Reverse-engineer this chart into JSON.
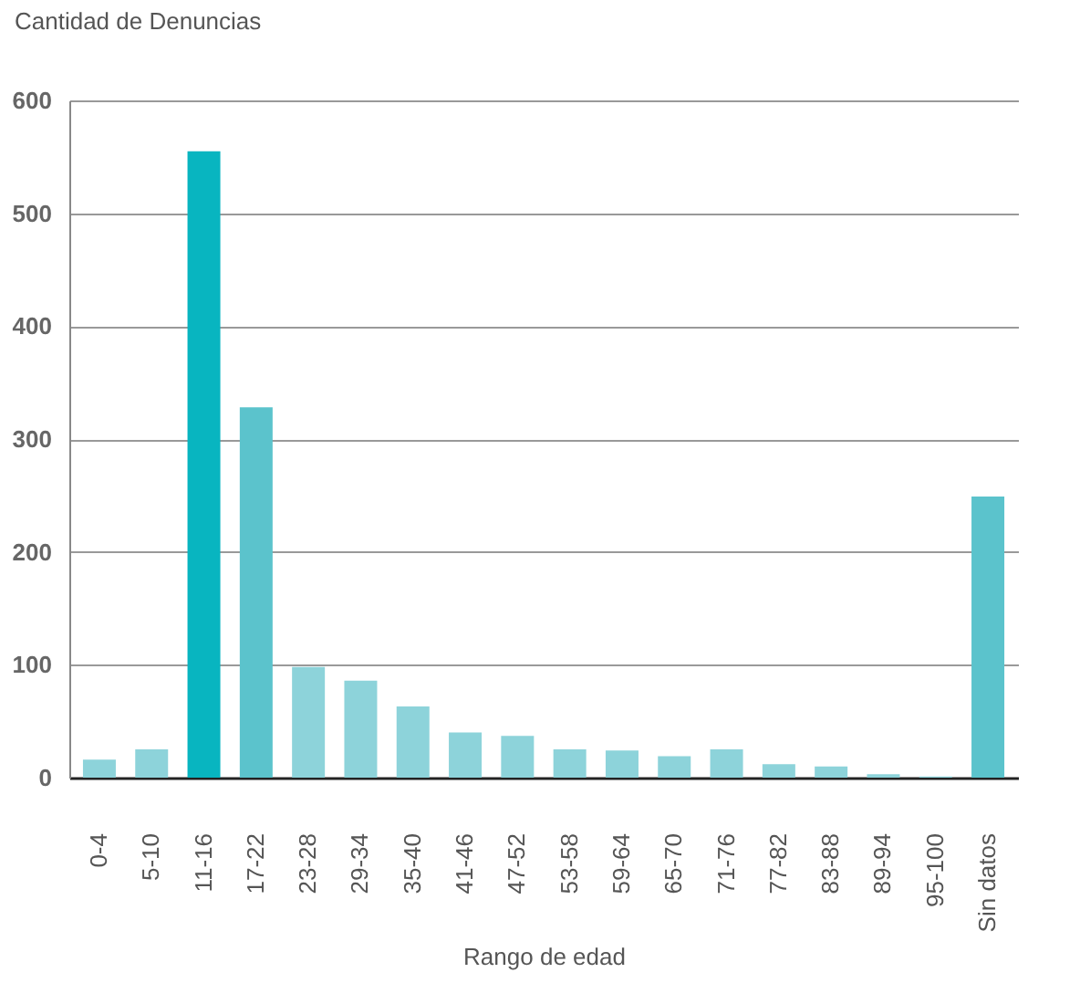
{
  "chart_data": {
    "type": "bar",
    "title": "Cantidad de Denuncias",
    "xlabel": "Rango de edad",
    "categories": [
      "0-4",
      "5-10",
      "11-16",
      "17-22",
      "23-28",
      "29-34",
      "35-40",
      "41-46",
      "47-52",
      "53-58",
      "59-64",
      "65-70",
      "71-76",
      "77-82",
      "83-88",
      "89-94",
      "95-100",
      "Sin datos"
    ],
    "values": [
      16,
      25,
      555,
      328,
      98,
      86,
      63,
      40,
      37,
      25,
      24,
      19,
      25,
      12,
      10,
      3,
      1,
      249
    ],
    "colors": [
      "#8dd3da",
      "#8dd3da",
      "#08b5c0",
      "#5bc3cc",
      "#8dd3da",
      "#8dd3da",
      "#8dd3da",
      "#8dd3da",
      "#8dd3da",
      "#8dd3da",
      "#8dd3da",
      "#8dd3da",
      "#8dd3da",
      "#8dd3da",
      "#8dd3da",
      "#8dd3da",
      "#8dd3da",
      "#5bc3cc"
    ],
    "ylim": [
      0,
      600
    ],
    "yticks": [
      0,
      100,
      200,
      300,
      400,
      500,
      600
    ],
    "grid": "y"
  }
}
